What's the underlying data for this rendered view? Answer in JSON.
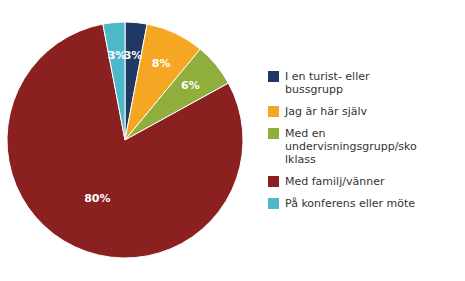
{
  "chart_data": {
    "type": "pie",
    "categories": [
      "I en turist- eller\nbussgrupp",
      "Jag är här själv",
      "Med en\nundervisningsgrupp/sko\nlklass",
      "Med familj/vänner",
      "På konferens eller möte"
    ],
    "values": [
      3,
      8,
      6,
      80,
      3
    ],
    "value_labels": [
      "3%",
      "8%",
      "6%",
      "80%",
      "3%"
    ],
    "colors": [
      "#1f3864",
      "#f5a623",
      "#8fae3b",
      "#8b2020",
      "#4db8c8"
    ],
    "data_labels": true,
    "legend": "right"
  }
}
